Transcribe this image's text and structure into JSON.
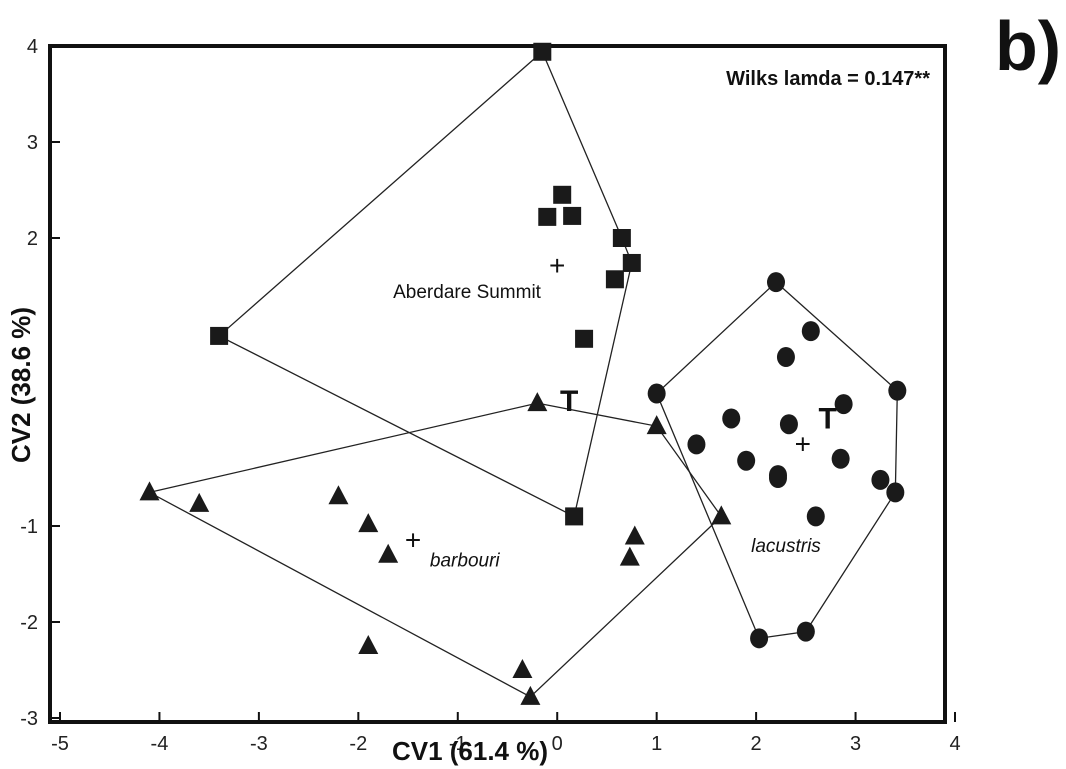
{
  "chart_data": {
    "type": "scatter",
    "panel_label": "b)",
    "annotation": "Wilks lamda = 0.147**",
    "xlabel": "CV1 (61.4 %)",
    "ylabel": "CV2 (38.6 %)",
    "xlim": [
      -5,
      4
    ],
    "ylim": [
      -3,
      4
    ],
    "x_ticks": [
      "-5",
      "-4",
      "-3",
      "-2",
      "-1",
      "0",
      "1",
      "2",
      "3",
      "4"
    ],
    "y_ticks": [
      "-3",
      "-2",
      "-1",
      "2",
      "3",
      "4"
    ],
    "legend": "none",
    "grid": false,
    "series": [
      {
        "name": "Aberdare Summit",
        "marker": "square",
        "label_italic": false,
        "points": [
          [
            -0.15,
            3.94
          ],
          [
            0.05,
            2.45
          ],
          [
            -0.1,
            2.22
          ],
          [
            0.15,
            2.23
          ],
          [
            0.65,
            2.0
          ],
          [
            0.75,
            1.74
          ],
          [
            0.58,
            1.57
          ],
          [
            0.27,
            0.95
          ],
          [
            -3.4,
            0.98
          ],
          [
            0.17,
            -0.9
          ]
        ],
        "hull": [
          [
            -0.15,
            3.94
          ],
          [
            0.65,
            2.0
          ],
          [
            0.75,
            1.74
          ],
          [
            0.17,
            -0.9
          ],
          [
            -3.4,
            0.98
          ]
        ],
        "centroid": [
          0.0,
          1.72
        ],
        "label_pos": [
          -1.65,
          1.45
        ],
        "type_pos": null
      },
      {
        "name": "barbouri",
        "marker": "triangle",
        "label_italic": true,
        "points": [
          [
            -4.1,
            -0.65
          ],
          [
            -3.6,
            -0.77
          ],
          [
            -2.2,
            -0.69
          ],
          [
            -1.9,
            -0.98
          ],
          [
            -1.7,
            -1.3
          ],
          [
            -0.2,
            0.28
          ],
          [
            1.0,
            0.04
          ],
          [
            0.78,
            -1.11
          ],
          [
            0.73,
            -1.33
          ],
          [
            1.65,
            -0.9
          ],
          [
            -1.9,
            -2.25
          ],
          [
            -0.35,
            -2.5
          ],
          [
            -0.27,
            -2.78
          ]
        ],
        "hull": [
          [
            -4.1,
            -0.65
          ],
          [
            -0.2,
            0.28
          ],
          [
            1.0,
            0.04
          ],
          [
            1.65,
            -0.9
          ],
          [
            -0.27,
            -2.78
          ]
        ],
        "centroid": [
          -1.45,
          -1.14
        ],
        "label_pos": [
          -1.28,
          -1.35
        ],
        "type_pos": [
          0.12,
          0.3
        ]
      },
      {
        "name": "lacustris",
        "marker": "circle",
        "label_italic": true,
        "points": [
          [
            2.2,
            1.54
          ],
          [
            2.55,
            1.03
          ],
          [
            2.3,
            0.76
          ],
          [
            1.0,
            0.38
          ],
          [
            1.4,
            -0.15
          ],
          [
            1.75,
            0.12
          ],
          [
            2.33,
            0.06
          ],
          [
            2.88,
            0.27
          ],
          [
            3.42,
            0.41
          ],
          [
            2.85,
            -0.3
          ],
          [
            1.9,
            -0.32
          ],
          [
            2.22,
            -0.5
          ],
          [
            2.03,
            -2.17
          ],
          [
            2.5,
            -2.1
          ],
          [
            2.6,
            -0.9
          ],
          [
            3.25,
            -0.52
          ],
          [
            3.4,
            -0.65
          ],
          [
            2.22,
            -0.47
          ]
        ],
        "hull": [
          [
            2.2,
            1.54
          ],
          [
            3.42,
            0.41
          ],
          [
            3.4,
            -0.65
          ],
          [
            2.5,
            -2.1
          ],
          [
            2.03,
            -2.17
          ],
          [
            1.0,
            0.38
          ]
        ],
        "centroid": [
          2.47,
          -0.14
        ],
        "label_pos": [
          1.95,
          -1.2
        ],
        "type_pos": [
          2.72,
          0.12
        ]
      }
    ]
  }
}
